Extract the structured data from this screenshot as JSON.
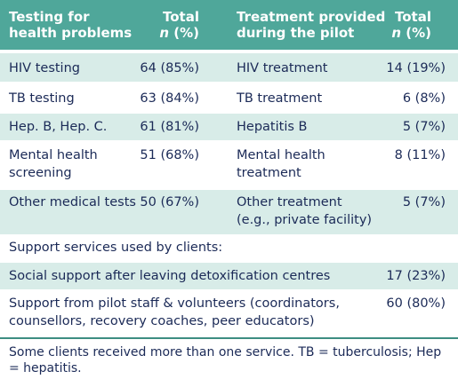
{
  "header": {
    "col1_line1": "Testing for",
    "col1_line2": "health problems",
    "col2_line1": "Total",
    "col2_n": "n",
    "col2_pct": " (%)",
    "col3_line1": "Treatment provided",
    "col3_line2": "during the pilot",
    "col4_line1": "Total",
    "col4_n": "n",
    "col4_pct": " (%)"
  },
  "rows": [
    {
      "test": "HIV testing",
      "test_total": "64 (85%)",
      "treat_line1": "HIV treatment",
      "treat_line2": "",
      "treat_total": "14 (19%)"
    },
    {
      "test": "TB testing",
      "test_total": "63 (84%)",
      "treat_line1": "TB treatment",
      "treat_line2": "",
      "treat_total": "6 (8%)"
    },
    {
      "test": "Hep. B, Hep. C.",
      "test_total": "61 (81%)",
      "treat_line1": "Hepatitis B",
      "treat_line2": "",
      "treat_total": "5 (7%)"
    },
    {
      "test_line1": "Mental health",
      "test_line2": "screening",
      "test_total": "51 (68%)",
      "treat_line1": "Mental health",
      "treat_line2": "treatment",
      "treat_total": "8 (11%)"
    },
    {
      "test": "Other medical tests",
      "test_total": "50 (67%)",
      "treat_line1": "Other treatment",
      "treat_line2": "(e.g., private facility)",
      "treat_total": "5 (7%)"
    }
  ],
  "support": {
    "heading": "Support services used by clients:",
    "items": [
      {
        "line1": "Social support after leaving detoxification centres",
        "line2": "",
        "total": "17 (23%)"
      },
      {
        "line1": "Support from pilot staff & volunteers (coordinators,",
        "line2": "counsellors, recovery coaches, peer educators)",
        "total": "60 (80%)"
      }
    ]
  },
  "footnote": "Some clients received more than one service. TB = tuberculosis; Hep = hepatitis.",
  "colors": {
    "header_bg": "#4fa79a",
    "band_bg": "#d8ece8",
    "text": "#1b2a57"
  }
}
